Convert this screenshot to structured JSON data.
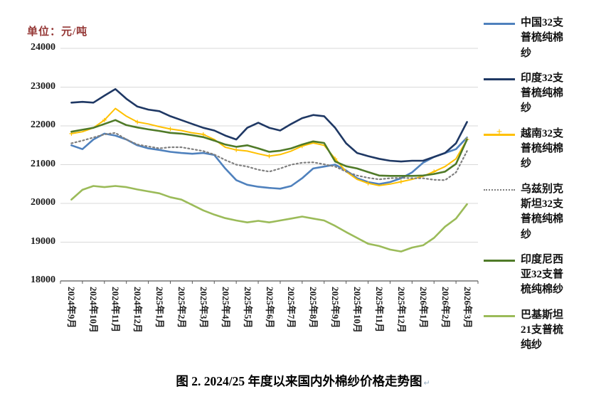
{
  "unit_label": "单位：元/吨",
  "caption_mark": "↵",
  "chart_data": {
    "type": "line",
    "title": "图 2. 2024/25 年度以来国内外棉纱价格走势图",
    "ylabel": "元/吨",
    "ylim": [
      18000,
      24000
    ],
    "y_ticks": [
      24000,
      23000,
      22000,
      21000,
      20000,
      19000,
      18000
    ],
    "grid": true,
    "legend_position": "right",
    "x_axis_label_rotation": 90,
    "samples_per_month": 2,
    "x_labels": [
      "2024年9月",
      "2024年10月",
      "2024年11月",
      "2024年12月",
      "2025年1月",
      "2025年2月",
      "2025年3月",
      "2025年4月",
      "2025年5月",
      "2025年6月",
      "2025年7月",
      "2025年8月",
      "2025年9月",
      "2025年10月",
      "2025年11月",
      "2025年12月",
      "2026年1月",
      "2026年2月",
      "2026年3月"
    ],
    "series": [
      {
        "name": "中国32支普梳纯棉纱",
        "color": "#4F81BD",
        "style": "solid",
        "width": 2.6,
        "values": [
          21500,
          21400,
          21650,
          21800,
          21750,
          21650,
          21500,
          21420,
          21380,
          21330,
          21300,
          21280,
          21300,
          21250,
          20900,
          20600,
          20480,
          20430,
          20400,
          20380,
          20450,
          20650,
          20900,
          20950,
          21000,
          20850,
          20650,
          20550,
          20500,
          20550,
          20650,
          20800,
          21050,
          21200,
          21300,
          21400,
          21700
        ]
      },
      {
        "name": "印度32支普梳纯棉纱",
        "color": "#1F3864",
        "style": "solid",
        "width": 2.6,
        "values": [
          22600,
          22620,
          22600,
          22780,
          22950,
          22700,
          22500,
          22420,
          22380,
          22250,
          22150,
          22050,
          21950,
          21880,
          21750,
          21650,
          21950,
          22080,
          21950,
          21880,
          22050,
          22200,
          22280,
          22250,
          21950,
          21550,
          21300,
          21220,
          21150,
          21100,
          21080,
          21100,
          21100,
          21200,
          21300,
          21550,
          22100
        ]
      },
      {
        "name": "越南32支普梳纯棉纱",
        "color": "#FFC000",
        "style": "solid-plus-markers",
        "width": 2,
        "values": [
          21800,
          21850,
          21950,
          22150,
          22450,
          22250,
          22100,
          22050,
          21980,
          21920,
          21880,
          21820,
          21780,
          21650,
          21450,
          21380,
          21350,
          21280,
          21220,
          21260,
          21350,
          21480,
          21560,
          21500,
          21150,
          20820,
          20620,
          20520,
          20460,
          20500,
          20560,
          20620,
          20700,
          20820,
          20950,
          21150,
          21650
        ]
      },
      {
        "name": "乌兹别克斯坦32支普梳纯棉纱",
        "color": "#7F7F7F",
        "style": "dotted",
        "width": 2.2,
        "values": [
          21550,
          21620,
          21700,
          21780,
          21820,
          21650,
          21520,
          21470,
          21420,
          21450,
          21450,
          21400,
          21350,
          21260,
          21120,
          21000,
          20950,
          20870,
          20820,
          20900,
          21000,
          21050,
          21060,
          21010,
          20950,
          20820,
          20720,
          20660,
          20620,
          20650,
          20660,
          20650,
          20650,
          20610,
          20600,
          20800,
          21350
        ]
      },
      {
        "name": "印度尼西亚32支普梳纯棉纱",
        "color": "#4F7A28",
        "style": "solid",
        "width": 2.6,
        "values": [
          21850,
          21900,
          21950,
          22050,
          22150,
          22020,
          21960,
          21910,
          21870,
          21820,
          21800,
          21760,
          21710,
          21620,
          21520,
          21460,
          21500,
          21420,
          21330,
          21360,
          21420,
          21520,
          21600,
          21560,
          21080,
          20960,
          20900,
          20810,
          20720,
          20710,
          20710,
          20710,
          20720,
          20760,
          20820,
          21020,
          21650
        ]
      },
      {
        "name": "巴基斯坦21支普梳纯纱",
        "color": "#9BBB59",
        "style": "solid",
        "width": 2.6,
        "values": [
          20100,
          20350,
          20450,
          20420,
          20450,
          20420,
          20360,
          20310,
          20260,
          20160,
          20100,
          19960,
          19820,
          19710,
          19620,
          19560,
          19510,
          19550,
          19510,
          19560,
          19610,
          19660,
          19610,
          19560,
          19420,
          19260,
          19110,
          18960,
          18900,
          18810,
          18760,
          18860,
          18920,
          19110,
          19400,
          19610,
          19980
        ]
      }
    ]
  }
}
